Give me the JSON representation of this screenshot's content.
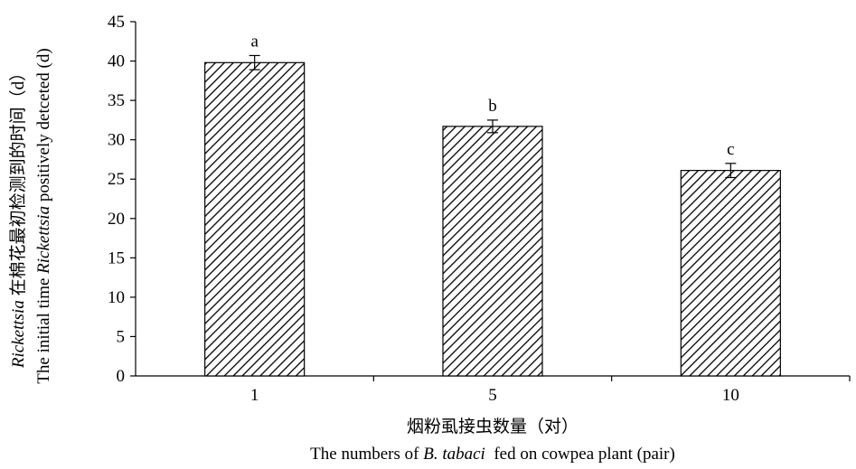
{
  "chart_data": {
    "type": "bar",
    "categories": [
      "1",
      "5",
      "10"
    ],
    "values": [
      39.8,
      31.7,
      26.1
    ],
    "errors": [
      0.9,
      0.8,
      0.9
    ],
    "significance_labels": [
      "a",
      "b",
      "c"
    ],
    "ylim": [
      0,
      45
    ],
    "yticks": [
      0,
      5,
      10,
      15,
      20,
      25,
      30,
      35,
      40,
      45
    ],
    "grid": false,
    "bar_fill": "diagonal-hatch",
    "colors": {
      "bar_stroke": "#000000",
      "hatch": "#000000",
      "background": "#ffffff"
    },
    "xlabel_cn": "烟粉虱接虫数量（对）",
    "xlabel_en": {
      "before": "The numbers of ",
      "italic": "B. tabaci",
      "after": "  fed on cowpea plant (pair)"
    },
    "ylabel_cn": {
      "italic": "Rickettsia",
      "rest": " 在棉花最初检测到的时间（d）"
    },
    "ylabel_en": {
      "before": "The initial time ",
      "italic": "Rickettsia",
      "after": " positively detceted (d)"
    }
  }
}
